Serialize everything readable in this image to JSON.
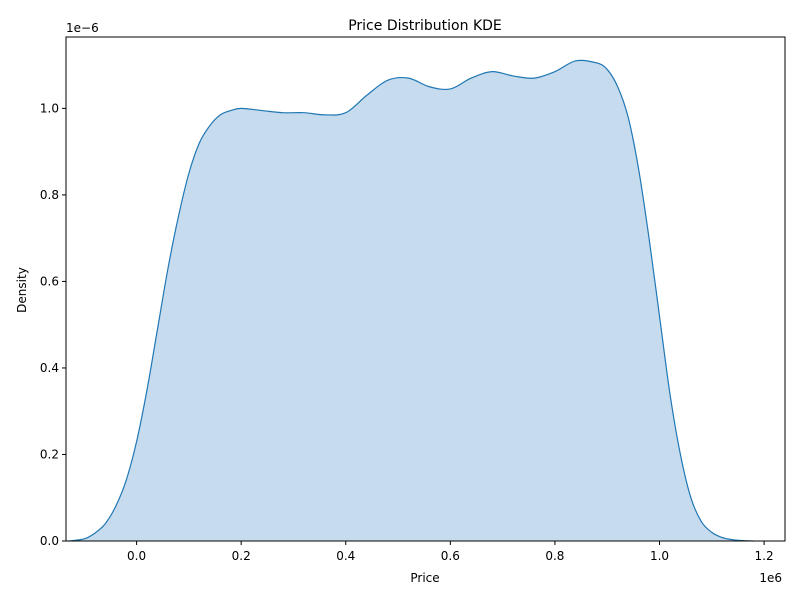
{
  "chart_data": {
    "type": "area",
    "title": "Price Distribution KDE",
    "xlabel": "Price",
    "ylabel": "Density",
    "x_offset_text": "1e6",
    "y_offset_text": "1e−6",
    "xlim": [
      -0.135,
      1.24
    ],
    "ylim": [
      0,
      1.165
    ],
    "xticks": [
      0.0,
      0.2,
      0.4,
      0.6,
      0.8,
      1.0,
      1.2
    ],
    "xtick_labels": [
      "0.0",
      "0.2",
      "0.4",
      "0.6",
      "0.8",
      "1.0",
      "1.2"
    ],
    "yticks": [
      0.0,
      0.2,
      0.4,
      0.6,
      0.8,
      1.0
    ],
    "ytick_labels": [
      "0.0",
      "0.2",
      "0.4",
      "0.6",
      "0.8",
      "1.0"
    ],
    "grid": false,
    "series": [
      {
        "line_color": "#1f77b4",
        "fill_color": "#c6dbed",
        "x": [
          -0.13,
          -0.1,
          -0.08,
          -0.06,
          -0.04,
          -0.02,
          0.0,
          0.02,
          0.04,
          0.06,
          0.08,
          0.1,
          0.12,
          0.14,
          0.16,
          0.18,
          0.2,
          0.24,
          0.28,
          0.32,
          0.36,
          0.4,
          0.44,
          0.48,
          0.52,
          0.56,
          0.6,
          0.64,
          0.68,
          0.72,
          0.76,
          0.8,
          0.84,
          0.88,
          0.9,
          0.92,
          0.94,
          0.96,
          0.98,
          1.0,
          1.02,
          1.04,
          1.06,
          1.08,
          1.1,
          1.12,
          1.14,
          1.16,
          1.18
        ],
        "y": [
          0.0,
          0.005,
          0.018,
          0.04,
          0.08,
          0.14,
          0.23,
          0.35,
          0.49,
          0.63,
          0.75,
          0.85,
          0.92,
          0.96,
          0.985,
          0.995,
          1.0,
          0.995,
          0.99,
          0.99,
          0.985,
          0.99,
          1.03,
          1.065,
          1.07,
          1.05,
          1.045,
          1.07,
          1.085,
          1.075,
          1.07,
          1.085,
          1.11,
          1.105,
          1.09,
          1.05,
          0.98,
          0.86,
          0.7,
          0.52,
          0.34,
          0.2,
          0.1,
          0.045,
          0.02,
          0.008,
          0.003,
          0.001,
          0.0
        ]
      }
    ]
  }
}
